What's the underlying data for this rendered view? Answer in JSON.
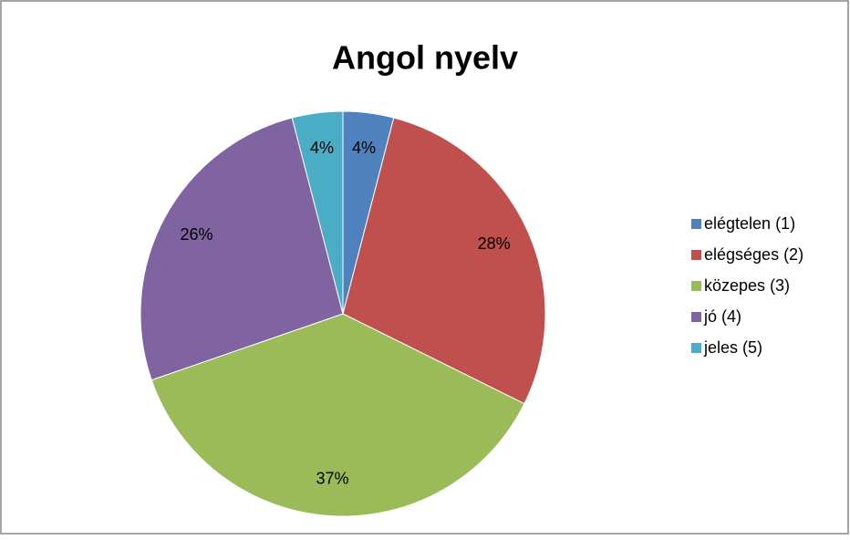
{
  "chart_data": {
    "type": "pie",
    "title": "Angol nyelv",
    "categories": [
      "elégtelen (1)",
      "elégséges (2)",
      "közepes (3)",
      "jó (4)",
      "jeles (5)"
    ],
    "values": [
      4,
      28,
      37,
      26,
      4
    ],
    "value_labels": [
      "4%",
      "28%",
      "37%",
      "26%",
      "4%"
    ],
    "colors": [
      "#4f81bd",
      "#c0504d",
      "#9bbb59",
      "#8064a2",
      "#4bacc6"
    ],
    "legend": "right"
  }
}
